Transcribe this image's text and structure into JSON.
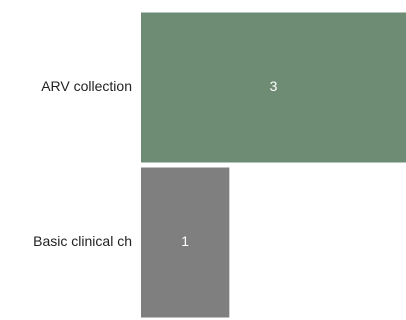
{
  "chart_data": {
    "type": "bar",
    "orientation": "horizontal",
    "categories": [
      "ARV collection",
      "Basic clinical ch"
    ],
    "values": [
      3,
      1
    ],
    "colors": [
      "#6e8b74",
      "#7f7f7f"
    ],
    "value_labels": [
      "3",
      "1"
    ],
    "xlim": [
      0,
      3
    ],
    "grid": false,
    "legend": "none"
  }
}
